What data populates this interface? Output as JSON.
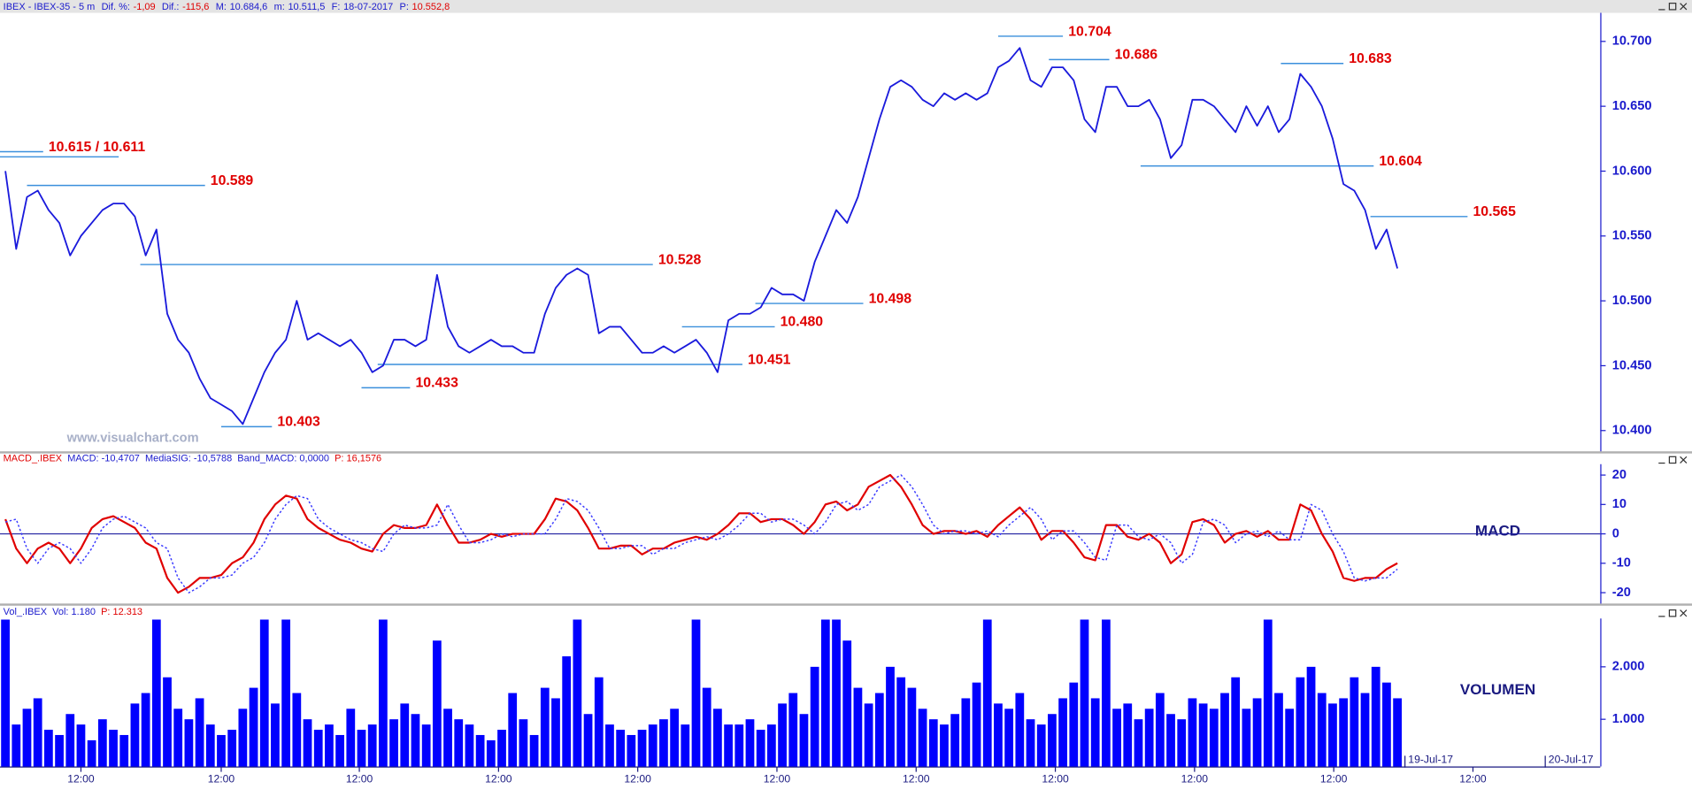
{
  "header": {
    "name": "IBEX - IBEX-35 -  5 m",
    "fields": [
      {
        "label": "Dif. %:",
        "value": "-1,09",
        "color": "#e00000"
      },
      {
        "label": "Dif.:",
        "value": "-115,6",
        "color": "#e00000"
      },
      {
        "label": "M:",
        "value": "10.684,6",
        "color": "#1a1acc"
      },
      {
        "label": "m:",
        "value": "10.511,5",
        "color": "#1a1acc"
      },
      {
        "label": "F:",
        "value": "18-07-2017",
        "color": "#1a1acc"
      },
      {
        "label": "P:",
        "value": "10.552,8",
        "color": "#e00000"
      }
    ]
  },
  "watermark": "www.visualchart.com",
  "x_axis": {
    "xlim": [
      -0.5,
      147.8
    ],
    "xticks": [
      {
        "value": 7,
        "label": "12:00"
      },
      {
        "value": 20,
        "label": "12:00"
      },
      {
        "value": 32.8,
        "label": "12:00"
      },
      {
        "value": 45.7,
        "label": "12:00"
      },
      {
        "value": 58.6,
        "label": "12:00"
      },
      {
        "value": 71.5,
        "label": "12:00"
      },
      {
        "value": 84.4,
        "label": "12:00"
      },
      {
        "value": 97.3,
        "label": "12:00"
      },
      {
        "value": 110.2,
        "label": "12:00"
      },
      {
        "value": 123.1,
        "label": "12:00"
      },
      {
        "value": 136,
        "label": "12:00"
      }
    ],
    "date_ticks": [
      {
        "value": 129.7,
        "label": "19-Jul-17"
      },
      {
        "value": 142.7,
        "label": "20-Jul-17"
      }
    ]
  },
  "chart_data": [
    {
      "type": "line",
      "color": "#1a1adc",
      "level_color": "#3a8fdc",
      "ylim": [
        10384,
        10722
      ],
      "yticks": [
        {
          "value": 10400,
          "label": "10.400"
        },
        {
          "value": 10450,
          "label": "10.450"
        },
        {
          "value": 10500,
          "label": "10.500"
        },
        {
          "value": 10550,
          "label": "10.550"
        },
        {
          "value": 10600,
          "label": "10.600"
        },
        {
          "value": 10650,
          "label": "10.650"
        },
        {
          "value": 10700,
          "label": "10.700"
        }
      ],
      "values": [
        10600,
        10540,
        10580,
        10585,
        10570,
        10560,
        10535,
        10550,
        10560,
        10570,
        10575,
        10575,
        10565,
        10535,
        10555,
        10490,
        10470,
        10460,
        10440,
        10425,
        10420,
        10415,
        10405,
        10425,
        10445,
        10460,
        10470,
        10500,
        10470,
        10475,
        10470,
        10465,
        10470,
        10460,
        10445,
        10450,
        10470,
        10470,
        10465,
        10470,
        10520,
        10480,
        10465,
        10460,
        10465,
        10470,
        10465,
        10465,
        10460,
        10460,
        10490,
        10510,
        10520,
        10525,
        10520,
        10475,
        10480,
        10480,
        10470,
        10460,
        10460,
        10465,
        10460,
        10465,
        10470,
        10460,
        10445,
        10485,
        10490,
        10490,
        10495,
        10510,
        10505,
        10505,
        10500,
        10530,
        10550,
        10570,
        10560,
        10580,
        10610,
        10640,
        10665,
        10670,
        10665,
        10655,
        10650,
        10660,
        10655,
        10660,
        10655,
        10660,
        10680,
        10685,
        10695,
        10670,
        10665,
        10680,
        10680,
        10670,
        10640,
        10630,
        10665,
        10665,
        10650,
        10650,
        10655,
        10640,
        10610,
        10620,
        10655,
        10655,
        10650,
        10640,
        10630,
        10650,
        10635,
        10650,
        10630,
        10640,
        10675,
        10665,
        10650,
        10625,
        10590,
        10585,
        10570,
        10540,
        10555,
        10525
      ],
      "levels": [
        {
          "values": [
            10615,
            10611
          ],
          "x": [
            [
              -0.5,
              3.5
            ],
            [
              -0.5,
              10.5
            ]
          ],
          "label": "10.615 / 10.611"
        },
        {
          "values": [
            10589
          ],
          "x": [
            [
              2,
              18.5
            ]
          ],
          "label": "10.589"
        },
        {
          "values": [
            10528
          ],
          "x": [
            [
              12.5,
              60
            ]
          ],
          "label": "10.528"
        },
        {
          "values": [
            10403
          ],
          "x": [
            [
              20,
              24.7
            ]
          ],
          "label": "10.403"
        },
        {
          "values": [
            10433
          ],
          "x": [
            [
              33,
              37.5
            ]
          ],
          "label": "10.433"
        },
        {
          "values": [
            10451
          ],
          "x": [
            [
              34.5,
              68.3
            ]
          ],
          "label": "10.451"
        },
        {
          "values": [
            10480
          ],
          "x": [
            [
              62.7,
              71.3
            ]
          ],
          "label": "10.480"
        },
        {
          "values": [
            10498
          ],
          "x": [
            [
              69.5,
              79.5
            ]
          ],
          "label": "10.498"
        },
        {
          "values": [
            10704
          ],
          "x": [
            [
              92,
              98
            ]
          ],
          "label": "10.704"
        },
        {
          "values": [
            10686
          ],
          "x": [
            [
              96.7,
              102.3
            ]
          ],
          "label": "10.686"
        },
        {
          "values": [
            10683
          ],
          "x": [
            [
              118.2,
              124
            ]
          ],
          "label": "10.683"
        },
        {
          "values": [
            10604
          ],
          "x": [
            [
              105.2,
              126.8
            ]
          ],
          "label": "10.604"
        },
        {
          "values": [
            10565
          ],
          "x": [
            [
              126.5,
              135.5
            ]
          ],
          "label": "10.565"
        }
      ]
    },
    {
      "type": "line",
      "label": "MACD",
      "header": [
        {
          "text": "MACD_.IBEX",
          "color": "#e00000"
        },
        {
          "text": "MACD: -10,4707",
          "color": "#1a1acc"
        },
        {
          "text": "MediaSIG: -10,5788",
          "color": "#1a1acc"
        },
        {
          "text": "Band_MACD: 0,0000",
          "color": "#1a1acc"
        },
        {
          "text": "P: 16,1576",
          "color": "#e00000"
        }
      ],
      "ylim": [
        -23.7,
        23.7
      ],
      "yticks": [
        20,
        10,
        0,
        -10,
        -20
      ],
      "hline": 0,
      "hline_color": "#2020a0",
      "series": [
        {
          "color": "#e00000",
          "values": [
            5,
            -5,
            -10,
            -5,
            -3,
            -5,
            -10,
            -5,
            2,
            5,
            6,
            4,
            2,
            -3,
            -5,
            -15,
            -20,
            -18,
            -15,
            -15,
            -14,
            -10,
            -8,
            -3,
            5,
            10,
            13,
            12,
            5,
            2,
            0,
            -2,
            -3,
            -5,
            -6,
            0,
            3,
            2,
            2,
            3,
            10,
            3,
            -3,
            -3,
            -2,
            0,
            -1,
            0,
            0,
            0,
            5,
            12,
            11,
            8,
            2,
            -5,
            -5,
            -4,
            -4,
            -7,
            -5,
            -5,
            -3,
            -2,
            -1,
            -2,
            0,
            3,
            7,
            7,
            4,
            5,
            5,
            3,
            0,
            4,
            10,
            11,
            8,
            10,
            16,
            18,
            20,
            16,
            10,
            3,
            0,
            1,
            1,
            0,
            1,
            -1,
            3,
            6,
            9,
            5,
            -2,
            1,
            1,
            -3,
            -8,
            -9,
            3,
            3,
            -1,
            -2,
            0,
            -3,
            -10,
            -7,
            4,
            5,
            3,
            -3,
            0,
            1,
            -1,
            1,
            -2,
            -2,
            10,
            8,
            0,
            -6,
            -15,
            -16,
            -15,
            -15,
            -12,
            -10
          ]
        },
        {
          "color": "#3a3aff",
          "dashed": true,
          "values": [
            4,
            5,
            -5,
            -10,
            -5,
            -3,
            -5,
            -10,
            -5,
            2,
            5,
            6,
            4,
            2,
            -3,
            -5,
            -15,
            -20,
            -18,
            -15,
            -15,
            -14,
            -10,
            -8,
            -3,
            5,
            10,
            13,
            12,
            5,
            2,
            0,
            -2,
            -3,
            -5,
            -6,
            0,
            3,
            2,
            2,
            3,
            10,
            3,
            -3,
            -3,
            -2,
            0,
            -1,
            0,
            0,
            0,
            5,
            12,
            11,
            8,
            2,
            -5,
            -5,
            -4,
            -4,
            -7,
            -5,
            -5,
            -3,
            -2,
            -1,
            -2,
            0,
            3,
            7,
            7,
            4,
            5,
            5,
            3,
            0,
            4,
            10,
            11,
            8,
            10,
            16,
            18,
            20,
            16,
            10,
            3,
            0,
            1,
            1,
            0,
            1,
            -1,
            3,
            6,
            9,
            5,
            -2,
            1,
            1,
            -3,
            -8,
            -9,
            3,
            3,
            -1,
            -2,
            0,
            -3,
            -10,
            -7,
            4,
            5,
            3,
            -3,
            0,
            1,
            -1,
            1,
            -2,
            -2,
            10,
            8,
            0,
            -6,
            -15,
            -16,
            -15,
            -15,
            -12
          ]
        }
      ]
    },
    {
      "type": "bar",
      "label": "VOLUMEN",
      "color": "#0000ff",
      "header": [
        {
          "text": "Vol_.IBEX",
          "color": "#1a1acc"
        },
        {
          "text": "Vol: 1.180",
          "color": "#1a1acc"
        },
        {
          "text": "P: 12.313",
          "color": "#e00000"
        }
      ],
      "ylim": [
        100,
        2920
      ],
      "yticks": [
        {
          "value": 2000,
          "label": "2.000"
        },
        {
          "value": 1000,
          "label": "1.000"
        }
      ],
      "values": [
        2900,
        900,
        1200,
        1400,
        800,
        700,
        1100,
        900,
        600,
        1000,
        800,
        700,
        1300,
        1500,
        2900,
        1800,
        1200,
        1000,
        1400,
        900,
        700,
        800,
        1200,
        1600,
        2900,
        1300,
        2900,
        1500,
        1000,
        800,
        900,
        700,
        1200,
        800,
        900,
        2900,
        1000,
        1300,
        1100,
        900,
        2500,
        1200,
        1000,
        900,
        700,
        600,
        800,
        1500,
        1000,
        700,
        1600,
        1400,
        2200,
        2900,
        1100,
        1800,
        900,
        800,
        700,
        800,
        900,
        1000,
        1200,
        900,
        2900,
        1600,
        1200,
        900,
        900,
        1000,
        800,
        900,
        1300,
        1500,
        1100,
        2000,
        2900,
        2900,
        2500,
        1600,
        1300,
        1500,
        2000,
        1800,
        1600,
        1200,
        1000,
        900,
        1100,
        1400,
        1700,
        2900,
        1300,
        1200,
        1500,
        1000,
        900,
        1100,
        1400,
        1700,
        2900,
        1400,
        2900,
        1200,
        1300,
        1000,
        1200,
        1500,
        1100,
        1000,
        1400,
        1300,
        1200,
        1500,
        1800,
        1200,
        1400,
        2900,
        1500,
        1200,
        1800,
        2000,
        1500,
        1300,
        1400,
        1800,
        1500,
        2000,
        1700,
        1400
      ]
    }
  ]
}
